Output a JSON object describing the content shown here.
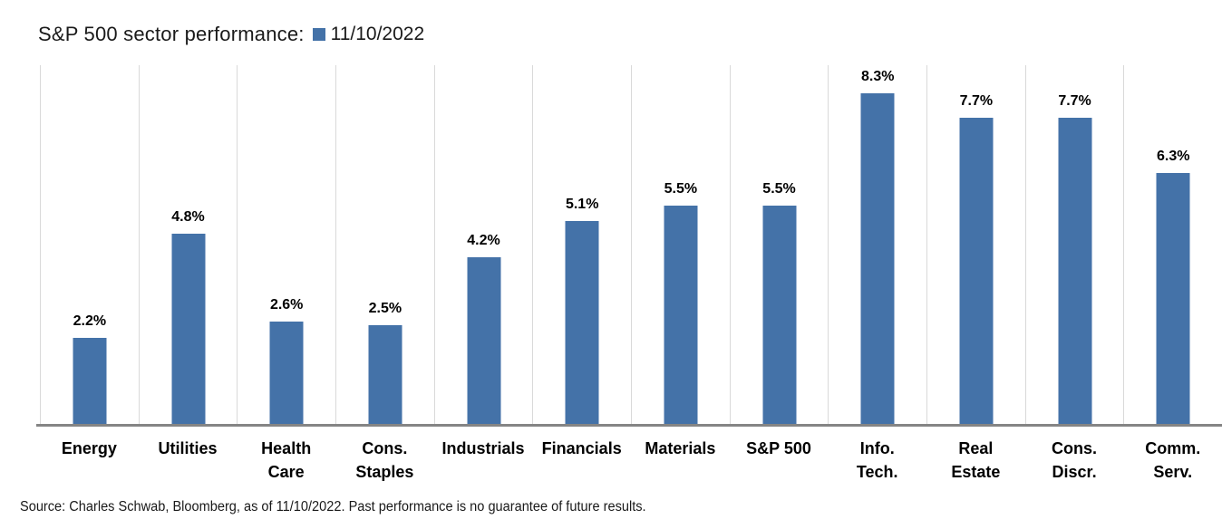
{
  "header": {
    "title": "S&P 500 sector performance:",
    "legend": {
      "label": "11/10/2022",
      "swatch_color": "#4472a8",
      "swatch_icon": "legend-square"
    }
  },
  "chart_data": {
    "type": "bar",
    "title": "S&P 500 sector performance:",
    "series_name": "11/10/2022",
    "categories": [
      "Energy",
      "Utilities",
      "Health\nCare",
      "Cons.\nStaples",
      "Industrials",
      "Financials",
      "Materials",
      "S&P 500",
      "Info.\nTech.",
      "Real\nEstate",
      "Cons.\nDiscr.",
      "Comm.\nServ."
    ],
    "values": [
      2.2,
      4.8,
      2.6,
      2.5,
      4.2,
      5.1,
      5.5,
      5.5,
      8.3,
      7.7,
      7.7,
      6.3
    ],
    "value_labels": [
      "2.2%",
      "4.8%",
      "2.6%",
      "2.5%",
      "4.2%",
      "5.1%",
      "5.5%",
      "5.5%",
      "8.3%",
      "7.7%",
      "7.7%",
      "6.3%"
    ],
    "xlabel": "",
    "ylabel": "",
    "ylim": [
      0,
      9
    ],
    "grid": "vertical category separators only",
    "legend_position": "top, inline with title",
    "bar_color": "#4472a8",
    "gridline_color": "#d9d9d9",
    "axis_line_color": "#858585"
  },
  "footer": {
    "source": "Source: Charles Schwab, Bloomberg, as of 11/10/2022.  Past performance is no guarantee of future results."
  }
}
